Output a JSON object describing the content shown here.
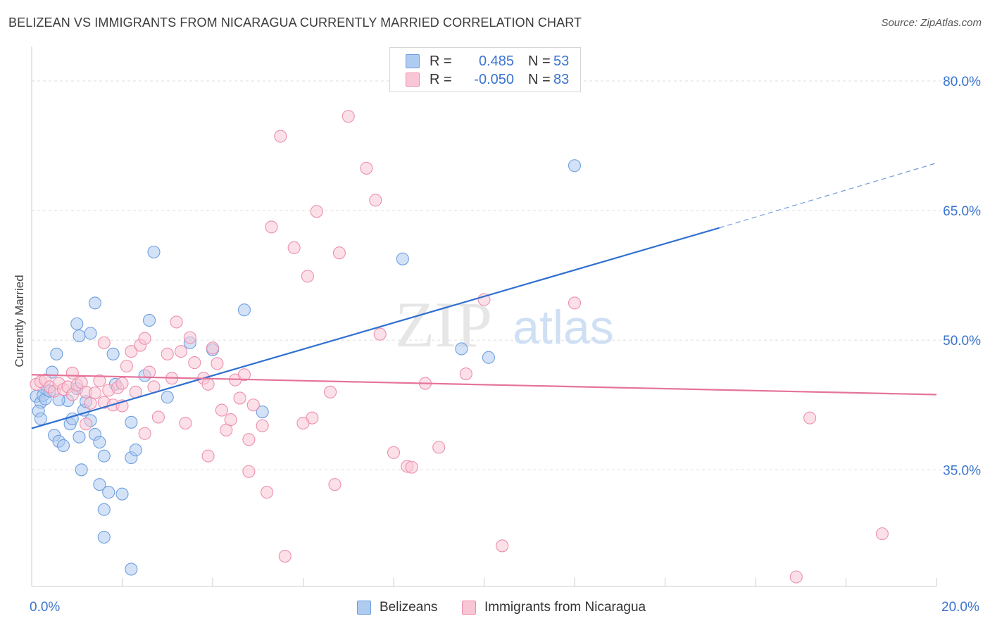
{
  "title": "BELIZEAN VS IMMIGRANTS FROM NICARAGUA CURRENTLY MARRIED CORRELATION CHART",
  "source": "Source: ZipAtlas.com",
  "watermark": {
    "zip": "ZIP",
    "atlas": "atlas"
  },
  "legend": {
    "rows": [
      {
        "r_label": "R =",
        "r_value": "0.485",
        "n_label": "N =",
        "n_value": "53",
        "color": "#aecbf0",
        "border": "#6f9fe0"
      },
      {
        "r_label": "R =",
        "r_value": "-0.050",
        "n_label": "N =",
        "n_value": "83",
        "color": "#f9c6d6",
        "border": "#ec8fae"
      }
    ]
  },
  "chart_data": {
    "type": "scatter",
    "title": "BELIZEAN VS IMMIGRANTS FROM NICARAGUA CURRENTLY MARRIED CORRELATION CHART",
    "xlabel": "",
    "ylabel": "Currently Married",
    "xlim": [
      0,
      20
    ],
    "ylim": [
      21.5,
      83.5
    ],
    "x_tick_labels": [
      "0.0%",
      "20.0%"
    ],
    "y_ticks": [
      35,
      50,
      65,
      80
    ],
    "y_tick_labels": [
      "35.0%",
      "50.0%",
      "65.0%",
      "80.0%"
    ],
    "grid": true,
    "legend_position": "top-center",
    "series": [
      {
        "name": "Belizeans",
        "color": "#6f9fe0",
        "fill": "#aecbf0",
        "trend": {
          "x": [
            0,
            15.2
          ],
          "y": [
            39.8,
            63.0
          ],
          "dashed_to": [
            20,
            70.5
          ],
          "color": "#2f6fcf"
        },
        "points": [
          [
            0.1,
            43.5
          ],
          [
            0.2,
            42.8
          ],
          [
            0.15,
            41.8
          ],
          [
            0.25,
            43.6
          ],
          [
            0.3,
            43.2
          ],
          [
            0.35,
            44.2
          ],
          [
            0.2,
            40.9
          ],
          [
            0.45,
            46.3
          ],
          [
            0.55,
            48.4
          ],
          [
            0.5,
            39.0
          ],
          [
            0.6,
            38.3
          ],
          [
            0.7,
            37.8
          ],
          [
            0.8,
            43.0
          ],
          [
            0.85,
            40.3
          ],
          [
            0.9,
            40.9
          ],
          [
            1.0,
            44.4
          ],
          [
            1.05,
            38.8
          ],
          [
            1.1,
            35.0
          ],
          [
            1.15,
            41.9
          ],
          [
            1.2,
            42.9
          ],
          [
            1.3,
            40.7
          ],
          [
            1.4,
            39.1
          ],
          [
            1.5,
            38.2
          ],
          [
            1.5,
            33.3
          ],
          [
            1.6,
            36.6
          ],
          [
            1.7,
            32.4
          ],
          [
            1.8,
            48.4
          ],
          [
            1.85,
            44.9
          ],
          [
            2.0,
            32.2
          ],
          [
            2.2,
            36.4
          ],
          [
            2.3,
            37.3
          ],
          [
            2.5,
            45.9
          ],
          [
            2.2,
            40.5
          ],
          [
            2.6,
            52.3
          ],
          [
            2.7,
            60.2
          ],
          [
            1.0,
            51.9
          ],
          [
            1.05,
            50.5
          ],
          [
            1.3,
            50.8
          ],
          [
            1.4,
            54.3
          ],
          [
            1.6,
            30.4
          ],
          [
            1.6,
            27.2
          ],
          [
            2.2,
            23.5
          ],
          [
            3.0,
            43.4
          ],
          [
            3.5,
            49.7
          ],
          [
            4.0,
            48.9
          ],
          [
            4.7,
            53.5
          ],
          [
            5.1,
            41.7
          ],
          [
            0.4,
            44.1
          ],
          [
            0.6,
            43.1
          ],
          [
            8.2,
            59.4
          ],
          [
            9.5,
            49.0
          ],
          [
            10.1,
            48.0
          ],
          [
            12.0,
            70.2
          ]
        ]
      },
      {
        "name": "Immigrants from Nicaragua",
        "color": "#ec8fae",
        "fill": "#f9c6d6",
        "trend": {
          "x": [
            0,
            20
          ],
          "y": [
            46.0,
            43.7
          ],
          "color": "#e5739a"
        },
        "points": [
          [
            0.1,
            44.9
          ],
          [
            0.2,
            45.2
          ],
          [
            0.3,
            45.4
          ],
          [
            0.4,
            44.6
          ],
          [
            0.5,
            44.1
          ],
          [
            0.6,
            45.0
          ],
          [
            0.7,
            44.3
          ],
          [
            0.8,
            44.6
          ],
          [
            0.9,
            43.7
          ],
          [
            1.0,
            44.8
          ],
          [
            1.1,
            45.1
          ],
          [
            1.2,
            44.0
          ],
          [
            1.3,
            42.7
          ],
          [
            1.4,
            43.9
          ],
          [
            1.5,
            45.3
          ],
          [
            1.6,
            42.8
          ],
          [
            1.7,
            44.2
          ],
          [
            1.8,
            42.5
          ],
          [
            1.9,
            44.5
          ],
          [
            2.0,
            45.0
          ],
          [
            2.1,
            47.0
          ],
          [
            2.2,
            48.7
          ],
          [
            2.3,
            44.0
          ],
          [
            2.4,
            49.4
          ],
          [
            2.5,
            50.2
          ],
          [
            2.6,
            46.3
          ],
          [
            2.7,
            44.6
          ],
          [
            2.8,
            41.1
          ],
          [
            3.0,
            48.4
          ],
          [
            3.1,
            45.6
          ],
          [
            3.2,
            52.1
          ],
          [
            3.3,
            48.7
          ],
          [
            3.4,
            40.4
          ],
          [
            3.5,
            50.3
          ],
          [
            3.6,
            47.4
          ],
          [
            3.8,
            45.6
          ],
          [
            3.9,
            36.6
          ],
          [
            4.0,
            49.1
          ],
          [
            4.1,
            47.3
          ],
          [
            4.2,
            41.9
          ],
          [
            4.3,
            39.6
          ],
          [
            4.4,
            40.8
          ],
          [
            4.5,
            45.4
          ],
          [
            4.6,
            43.3
          ],
          [
            4.7,
            46.0
          ],
          [
            4.8,
            38.5
          ],
          [
            4.9,
            42.5
          ],
          [
            5.1,
            40.1
          ],
          [
            5.3,
            63.1
          ],
          [
            5.5,
            73.6
          ],
          [
            5.8,
            60.7
          ],
          [
            6.1,
            57.4
          ],
          [
            6.3,
            64.9
          ],
          [
            6.8,
            60.1
          ],
          [
            7.0,
            75.9
          ],
          [
            7.4,
            69.9
          ],
          [
            7.6,
            66.2
          ],
          [
            7.7,
            50.7
          ],
          [
            8.0,
            37.0
          ],
          [
            8.3,
            35.4
          ],
          [
            8.4,
            35.3
          ],
          [
            9.0,
            37.6
          ],
          [
            9.6,
            46.1
          ],
          [
            10.0,
            54.7
          ],
          [
            12.0,
            54.3
          ],
          [
            10.4,
            26.2
          ],
          [
            5.6,
            25.0
          ],
          [
            6.7,
            33.3
          ],
          [
            5.2,
            32.4
          ],
          [
            4.8,
            34.8
          ],
          [
            6.2,
            41.0
          ],
          [
            2.5,
            39.2
          ],
          [
            1.2,
            40.3
          ],
          [
            8.7,
            45.0
          ],
          [
            17.2,
            41.0
          ],
          [
            18.8,
            27.6
          ],
          [
            16.9,
            22.6
          ],
          [
            6.0,
            40.4
          ],
          [
            3.9,
            44.9
          ],
          [
            2.0,
            42.4
          ],
          [
            1.6,
            49.7
          ],
          [
            0.9,
            46.2
          ],
          [
            6.6,
            44.0
          ]
        ]
      }
    ]
  },
  "bottom_legend": {
    "items": [
      "Belizeans",
      "Immigrants from Nicaragua"
    ]
  }
}
